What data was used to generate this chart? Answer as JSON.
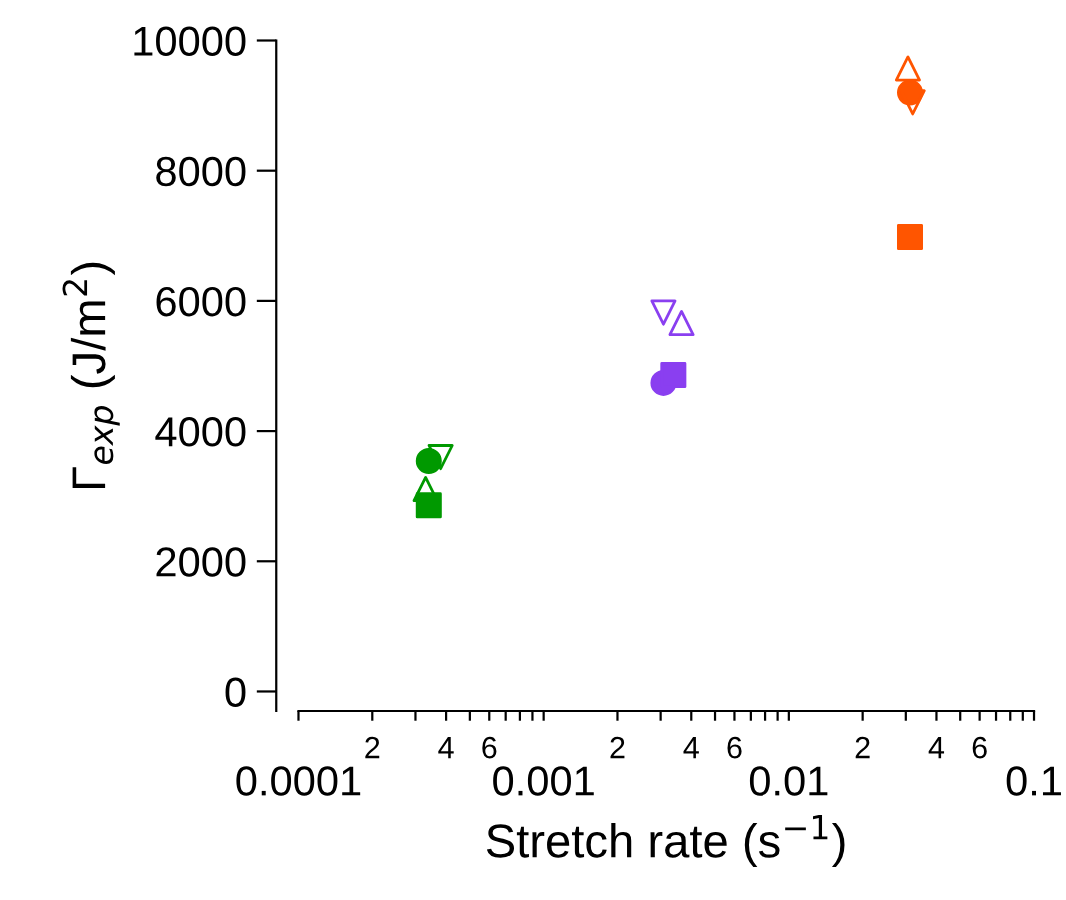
{
  "chart_data": {
    "type": "scatter",
    "xlabel": "Stretch rate (s$^{−1}$)",
    "ylabel": "Γ$_{exp}$ (J/m$^{2}$)",
    "log": "x",
    "xlim": [
      0.0001,
      0.1
    ],
    "ylim": [
      -300,
      10000
    ],
    "xticks": [
      0.0001,
      {
        "value": 0.0002,
        "label": null
      },
      {
        "value": 0.0003,
        "label": null
      },
      {
        "value": 0.0004,
        "label": null
      },
      {
        "value": 0.0005,
        "label": null
      },
      {
        "value": 0.0006,
        "label": null
      },
      {
        "value": 0.0007,
        "label": null
      },
      {
        "value": 0.0008,
        "label": null
      },
      {
        "value": 0.0009,
        "label": null
      },
      0.001,
      {
        "value": 0.002,
        "label": null
      },
      {
        "value": 0.003,
        "label": null
      },
      {
        "value": 0.004,
        "label": null
      },
      {
        "value": 0.005,
        "label": null
      },
      {
        "value": 0.006,
        "label": null
      },
      {
        "value": 0.007,
        "label": null
      },
      {
        "value": 0.008,
        "label": null
      },
      {
        "value": 0.009,
        "label": null
      },
      0.01,
      {
        "value": 0.02,
        "label": null
      },
      {
        "value": 0.03,
        "label": null
      },
      {
        "value": 0.04,
        "label": null
      },
      {
        "value": 0.05,
        "label": null
      },
      {
        "value": 0.06,
        "label": null
      },
      {
        "value": 0.07,
        "label": null
      },
      {
        "value": 0.08,
        "label": null
      },
      {
        "value": 0.09,
        "label": null
      },
      0.1
    ],
    "annotations": [
      "2",
      "4",
      "6",
      "2",
      "4",
      "6",
      "2",
      "4",
      "6"
    ],
    "yticks": [
      0,
      2000,
      4000,
      6000,
      8000,
      10000
    ],
    "grid": false,
    "series": [
      {
        "marker": "circle",
        "x": [
          0.00034,
          0.00308,
          0.0312
        ],
        "values": [
          3540,
          4740,
          9200
        ],
        "colors": [
          "#009900",
          "#8a3ff0",
          "#ff5500"
        ]
      },
      {
        "marker": "square",
        "x": [
          0.00034,
          0.00338,
          0.0312
        ],
        "values": [
          2860,
          4860,
          6980
        ],
        "colors": [
          "#009900",
          "#8a3ff0",
          "#ff5500"
        ]
      },
      {
        "marker": "triangle",
        "x": [
          0.00033,
          0.00365,
          0.0306
        ],
        "values": [
          3110,
          5660,
          9570
        ],
        "colors": [
          "#009900",
          "#8a3ff0",
          "#ff5500"
        ]
      },
      {
        "marker": "triangle-down",
        "x": [
          0.00038,
          0.00308,
          0.032
        ],
        "values": [
          3600,
          5820,
          9050
        ],
        "colors": [
          "#009900",
          "#8a3ff0",
          "#ff5500"
        ]
      }
    ]
  }
}
